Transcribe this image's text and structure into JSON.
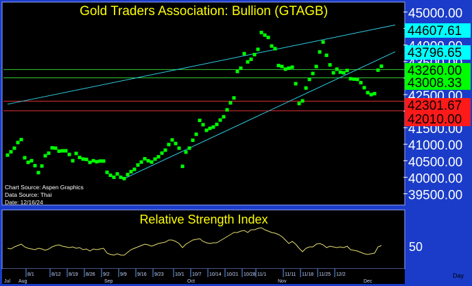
{
  "chart_data": [
    {
      "type": "scatter",
      "title": "Gold Traders Association: Bullion (GTAGB)",
      "ylim": [
        39200,
        45300
      ],
      "y_ticks": [
        39500,
        40000,
        40500,
        41000,
        41500,
        42000,
        42500,
        43000,
        43500,
        44000,
        44500,
        45000
      ],
      "y_tick_labels": [
        "39500.00",
        "40000.00",
        "40500.00",
        "41000.00",
        "41500.00",
        "42000.00",
        "42500.00",
        "43000.00",
        "43500.00",
        "44000.00",
        "44500.00",
        "45000.00"
      ],
      "x_tick_labels": [
        "8/1",
        "8/12",
        "8/19",
        "8/26",
        "9/2",
        "9/9",
        "9/16",
        "9/23",
        "10/1",
        "10/7",
        "10/14",
        "10/21",
        "10/28",
        "11/1",
        "11/11",
        "11/18",
        "11/25",
        "12/2"
      ],
      "month_labels": [
        "Jul",
        "Aug",
        "Sep",
        "Oct",
        "Nov",
        "Dec"
      ],
      "period_label": "Day",
      "price_labels": [
        {
          "value": "44607.61",
          "color": "#00ffff"
        },
        {
          "value": "43796.65",
          "color": "#00ffff"
        },
        {
          "value": "43260.00",
          "color": "#00ff00"
        },
        {
          "value": "43008.33",
          "color": "#00ff00"
        },
        {
          "value": "42301.67",
          "color": "#ff1a1a"
        },
        {
          "value": "42010.00",
          "color": "#ff1a1a"
        }
      ],
      "horizontal_lines": [
        {
          "y": 43260,
          "color": "#33cc33"
        },
        {
          "y": 43008.33,
          "color": "#33cc33"
        },
        {
          "y": 42301.67,
          "color": "#e03030"
        },
        {
          "y": 42010,
          "color": "#e03030"
        }
      ],
      "trend_lines": [
        {
          "from": [
            0,
            42210
          ],
          "to": [
            113,
            44607.61
          ],
          "color": "#30d0e8"
        },
        {
          "from": [
            34,
            39960
          ],
          "to": [
            113,
            43796.65
          ],
          "color": "#30d0e8"
        }
      ],
      "series": [
        {
          "color": "#00ff00",
          "points": [
            [
              0,
              40670
            ],
            [
              1,
              40770
            ],
            [
              2,
              40880
            ],
            [
              3,
              41050
            ],
            [
              4,
              41140
            ],
            [
              5,
              40590
            ],
            [
              6,
              40450
            ],
            [
              7,
              40500
            ],
            [
              8,
              40350
            ],
            [
              9,
              40140
            ],
            [
              10,
              40340
            ],
            [
              11,
              40650
            ],
            [
              12,
              40730
            ],
            [
              13,
              40890
            ],
            [
              14,
              40880
            ],
            [
              15,
              40790
            ],
            [
              16,
              40800
            ],
            [
              17,
              40800
            ],
            [
              18,
              40690
            ],
            [
              19,
              40500
            ],
            [
              20,
              40720
            ],
            [
              21,
              40600
            ],
            [
              22,
              40550
            ],
            [
              23,
              40540
            ],
            [
              24,
              40450
            ],
            [
              25,
              40500
            ],
            [
              26,
              40470
            ],
            [
              27,
              40490
            ],
            [
              28,
              40490
            ],
            [
              29,
              40150
            ],
            [
              30,
              40060
            ],
            [
              31,
              40000
            ],
            [
              32,
              40100
            ],
            [
              33,
              40000
            ],
            [
              34,
              39960
            ],
            [
              35,
              40080
            ],
            [
              36,
              40170
            ],
            [
              37,
              40240
            ],
            [
              38,
              40370
            ],
            [
              39,
              40460
            ],
            [
              40,
              40560
            ],
            [
              41,
              40500
            ],
            [
              42,
              40460
            ],
            [
              43,
              40550
            ],
            [
              44,
              40620
            ],
            [
              45,
              40730
            ],
            [
              46,
              40820
            ],
            [
              47,
              40990
            ],
            [
              48,
              41130
            ],
            [
              49,
              41020
            ],
            [
              50,
              40880
            ],
            [
              51,
              40330
            ],
            [
              52,
              40760
            ],
            [
              53,
              40880
            ],
            [
              54,
              41120
            ],
            [
              55,
              41300
            ],
            [
              56,
              41720
            ],
            [
              57,
              41590
            ],
            [
              58,
              41420
            ],
            [
              59,
              41480
            ],
            [
              60,
              41520
            ],
            [
              61,
              41600
            ],
            [
              62,
              41730
            ],
            [
              63,
              41830
            ],
            [
              64,
              42040
            ],
            [
              65,
              42250
            ],
            [
              66,
              42400
            ],
            [
              67,
              43200
            ],
            [
              68,
              43300
            ],
            [
              69,
              43740
            ],
            [
              70,
              43490
            ],
            [
              71,
              43570
            ],
            [
              72,
              43710
            ],
            [
              73,
              43870
            ],
            [
              74,
              44380
            ],
            [
              75,
              44300
            ],
            [
              76,
              44230
            ],
            [
              77,
              43970
            ],
            [
              78,
              43890
            ],
            [
              79,
              43380
            ],
            [
              80,
              43350
            ],
            [
              81,
              43270
            ],
            [
              82,
              43300
            ],
            [
              83,
              43330
            ],
            [
              84,
              42830
            ],
            [
              85,
              42230
            ],
            [
              86,
              42310
            ],
            [
              87,
              42700
            ],
            [
              88,
              42960
            ],
            [
              89,
              43140
            ],
            [
              90,
              43350
            ],
            [
              91,
              43790
            ],
            [
              92,
              44090
            ],
            [
              93,
              43690
            ],
            [
              94,
              43400
            ],
            [
              95,
              43160
            ],
            [
              96,
              43270
            ],
            [
              97,
              43180
            ],
            [
              98,
              43160
            ],
            [
              99,
              43230
            ],
            [
              100,
              42980
            ],
            [
              101,
              42970
            ],
            [
              102,
              42960
            ],
            [
              103,
              42860
            ],
            [
              104,
              42710
            ],
            [
              105,
              42560
            ],
            [
              106,
              42500
            ],
            [
              107,
              42530
            ],
            [
              108,
              43240
            ],
            [
              109,
              43360
            ]
          ]
        }
      ],
      "source_text": [
        "Chart Source: Aspen Graphics",
        "Data Source: Thai",
        "Date: 12/16/24"
      ]
    },
    {
      "type": "line",
      "title": "Relative Strength Index",
      "y_tick_labels": [
        "50"
      ],
      "series": [
        {
          "color": "#e8e070",
          "values": [
            50,
            49,
            52,
            54,
            56,
            52,
            50,
            49,
            48,
            50,
            49,
            47,
            49,
            52,
            54,
            55,
            53,
            52,
            51,
            52,
            50,
            51,
            48,
            49,
            46,
            49,
            48,
            49,
            50,
            43,
            41,
            40,
            42,
            40,
            40,
            44,
            48,
            50,
            52,
            54,
            56,
            55,
            53,
            55,
            57,
            58,
            59,
            62,
            62,
            60,
            57,
            51,
            56,
            59,
            62,
            63,
            64,
            60,
            58,
            57,
            58,
            58,
            61,
            64,
            67,
            70,
            73,
            73,
            75,
            76,
            73,
            77,
            77,
            79,
            80,
            77,
            75,
            73,
            72,
            70,
            67,
            62,
            57,
            60,
            56,
            50,
            45,
            50,
            52,
            52,
            56,
            57,
            55,
            51,
            53,
            52,
            51,
            52,
            51,
            53,
            48,
            47,
            46,
            44,
            42,
            41,
            42,
            43,
            52,
            54
          ]
        }
      ]
    }
  ]
}
